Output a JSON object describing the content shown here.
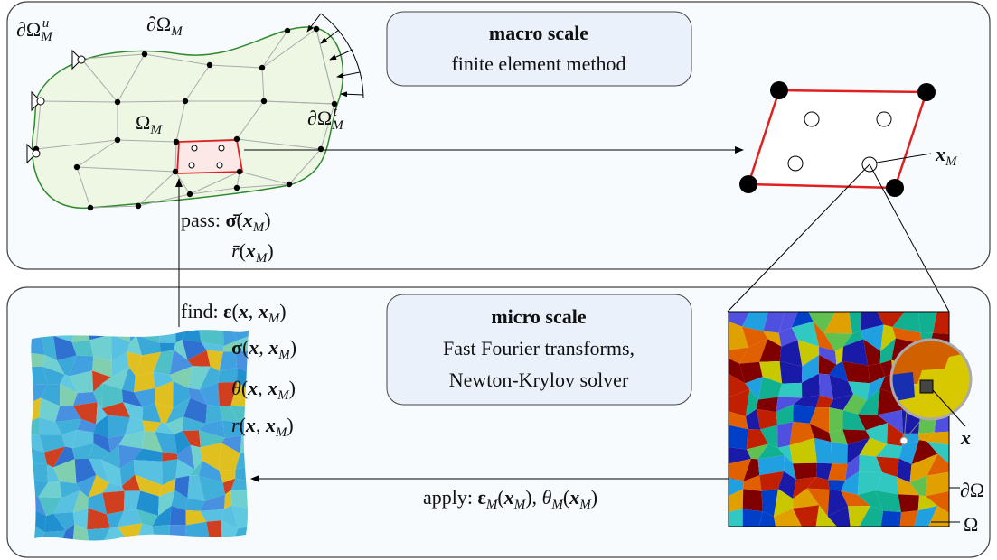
{
  "macro": {
    "title": "macro scale",
    "subtitle": "finite element method"
  },
  "micro": {
    "title": "micro scale",
    "lines": [
      "Fast Fourier transforms,",
      "Newton-Krylov solver"
    ]
  },
  "labels": [
    {
      "parts": [
        {
          "text": "∂Ω",
          "style": "r"
        },
        {
          "text": "M",
          "style": "sub"
        },
        {
          "text": "u",
          "style": "supback"
        }
      ]
    },
    {
      "parts": [
        {
          "text": "∂Ω",
          "style": "r"
        },
        {
          "text": "M",
          "style": "sub"
        }
      ]
    },
    {
      "parts": [
        {
          "text": "Ω",
          "style": "r"
        },
        {
          "text": "M",
          "style": "sub"
        }
      ]
    },
    {
      "parts": [
        {
          "text": "∂Ω",
          "style": "r"
        },
        {
          "text": "M",
          "style": "sub"
        },
        {
          "text": "t",
          "style": "supback"
        }
      ]
    },
    {
      "parts": [
        {
          "text": "x",
          "style": "bi"
        },
        {
          "text": "M",
          "style": "sub"
        }
      ]
    },
    {
      "parts": [
        {
          "text": "pass: ",
          "style": "r"
        },
        {
          "text": "σ̄",
          "style": "b"
        },
        {
          "text": "(",
          "style": "r"
        },
        {
          "text": "x",
          "style": "bi"
        },
        {
          "text": "M",
          "style": "sub"
        },
        {
          "text": ")",
          "style": "r"
        }
      ]
    },
    {
      "parts": [
        {
          "text": "r̄",
          "style": "i"
        },
        {
          "text": "(",
          "style": "r"
        },
        {
          "text": "x",
          "style": "bi"
        },
        {
          "text": "M",
          "style": "sub"
        },
        {
          "text": ")",
          "style": "r"
        }
      ]
    },
    {
      "parts": [
        {
          "text": "find: ",
          "style": "r"
        },
        {
          "text": "ε",
          "style": "b"
        },
        {
          "text": "(",
          "style": "r"
        },
        {
          "text": "x",
          "style": "bi"
        },
        {
          "text": ", ",
          "style": "r"
        },
        {
          "text": "x",
          "style": "bi"
        },
        {
          "text": "M",
          "style": "sub"
        },
        {
          "text": ")",
          "style": "r"
        }
      ]
    },
    {
      "parts": [
        {
          "text": "σ",
          "style": "b"
        },
        {
          "text": "(",
          "style": "r"
        },
        {
          "text": "x",
          "style": "bi"
        },
        {
          "text": ", ",
          "style": "r"
        },
        {
          "text": "x",
          "style": "bi"
        },
        {
          "text": "M",
          "style": "sub"
        },
        {
          "text": ")",
          "style": "r"
        }
      ]
    },
    {
      "parts": [
        {
          "text": "θ",
          "style": "i"
        },
        {
          "text": "(",
          "style": "r"
        },
        {
          "text": "x",
          "style": "bi"
        },
        {
          "text": ", ",
          "style": "r"
        },
        {
          "text": "x",
          "style": "bi"
        },
        {
          "text": "M",
          "style": "sub"
        },
        {
          "text": ")",
          "style": "r"
        }
      ]
    },
    {
      "parts": [
        {
          "text": "r",
          "style": "i"
        },
        {
          "text": "(",
          "style": "r"
        },
        {
          "text": "x",
          "style": "bi"
        },
        {
          "text": ", ",
          "style": "r"
        },
        {
          "text": "x",
          "style": "bi"
        },
        {
          "text": "M",
          "style": "sub"
        },
        {
          "text": ")",
          "style": "r"
        }
      ]
    },
    {
      "parts": [
        {
          "text": "apply: ",
          "style": "r"
        },
        {
          "text": "ε",
          "style": "b"
        },
        {
          "text": "M",
          "style": "sub"
        },
        {
          "text": "(",
          "style": "r"
        },
        {
          "text": "x",
          "style": "bi"
        },
        {
          "text": "M",
          "style": "sub"
        },
        {
          "text": "), ",
          "style": "r"
        },
        {
          "text": "θ",
          "style": "i"
        },
        {
          "text": "M",
          "style": "sub"
        },
        {
          "text": "(",
          "style": "r"
        },
        {
          "text": "x",
          "style": "bi"
        },
        {
          "text": "M",
          "style": "sub"
        },
        {
          "text": ")",
          "style": "r"
        }
      ]
    },
    {
      "parts": [
        {
          "text": "x",
          "style": "bi"
        }
      ]
    },
    {
      "parts": [
        {
          "text": "∂Ω",
          "style": "r"
        }
      ]
    },
    {
      "parts": [
        {
          "text": "Ω",
          "style": "r"
        }
      ]
    }
  ]
}
